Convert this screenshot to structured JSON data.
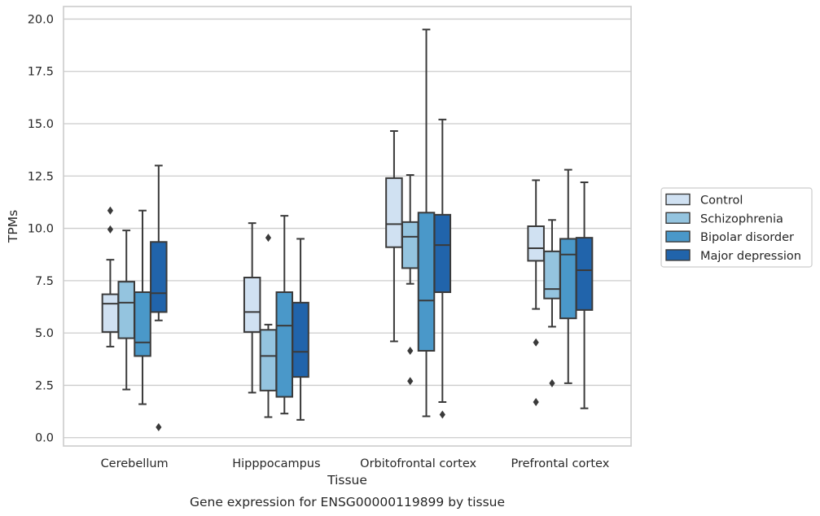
{
  "chart_data": {
    "type": "box",
    "title": "Gene expression for ENSG00000119899 by tissue",
    "xlabel": "Tissue",
    "ylabel": "TPMs",
    "ylim": [
      -0.4,
      20.6
    ],
    "yticks": [
      "0.0",
      "2.5",
      "5.0",
      "7.5",
      "10.0",
      "12.5",
      "15.0",
      "17.5",
      "20.0"
    ],
    "grid": true,
    "legend_position": "right",
    "categories": [
      "Cerebellum",
      "Hipppocampus",
      "Orbitofrontal cortex",
      "Prefrontal cortex"
    ],
    "series": [
      {
        "name": "Control",
        "color": "#d0e1f2",
        "boxes": [
          {
            "whisker_low": 4.35,
            "q1": 5.05,
            "median": 6.4,
            "q3": 6.85,
            "whisker_high": 8.5,
            "outliers": [
              9.95,
              10.85
            ]
          },
          {
            "whisker_low": 2.15,
            "q1": 5.05,
            "median": 6.0,
            "q3": 7.65,
            "whisker_high": 10.25,
            "outliers": []
          },
          {
            "whisker_low": 4.6,
            "q1": 9.1,
            "median": 10.2,
            "q3": 12.4,
            "whisker_high": 14.65,
            "outliers": []
          },
          {
            "whisker_low": 6.15,
            "q1": 8.45,
            "median": 9.05,
            "q3": 10.1,
            "whisker_high": 12.3,
            "outliers": [
              1.7,
              4.55
            ]
          }
        ]
      },
      {
        "name": "Schizophrenia",
        "color": "#94c4df",
        "boxes": [
          {
            "whisker_low": 2.3,
            "q1": 4.75,
            "median": 6.45,
            "q3": 7.45,
            "whisker_high": 9.9,
            "outliers": []
          },
          {
            "whisker_low": 0.98,
            "q1": 2.25,
            "median": 3.9,
            "q3": 5.15,
            "whisker_high": 5.4,
            "outliers": [
              9.55
            ]
          },
          {
            "whisker_low": 7.35,
            "q1": 8.1,
            "median": 9.6,
            "q3": 10.3,
            "whisker_high": 12.55,
            "outliers": [
              2.7,
              4.15
            ]
          },
          {
            "whisker_low": 5.3,
            "q1": 6.65,
            "median": 7.1,
            "q3": 8.9,
            "whisker_high": 10.4,
            "outliers": [
              2.6
            ]
          }
        ]
      },
      {
        "name": "Bipolar disorder",
        "color": "#4a98c9",
        "boxes": [
          {
            "whisker_low": 1.6,
            "q1": 3.9,
            "median": 4.55,
            "q3": 6.95,
            "whisker_high": 10.85,
            "outliers": []
          },
          {
            "whisker_low": 1.15,
            "q1": 1.95,
            "median": 5.35,
            "q3": 6.95,
            "whisker_high": 10.6,
            "outliers": []
          },
          {
            "whisker_low": 1.02,
            "q1": 4.15,
            "median": 6.55,
            "q3": 10.75,
            "whisker_high": 19.5,
            "outliers": []
          },
          {
            "whisker_low": 2.6,
            "q1": 5.7,
            "median": 8.75,
            "q3": 9.5,
            "whisker_high": 12.8,
            "outliers": []
          }
        ]
      },
      {
        "name": "Major depression",
        "color": "#2164ab",
        "boxes": [
          {
            "whisker_low": 5.6,
            "q1": 6.0,
            "median": 6.9,
            "q3": 9.35,
            "whisker_high": 13.0,
            "outliers": [
              0.5
            ]
          },
          {
            "whisker_low": 0.85,
            "q1": 2.9,
            "median": 4.1,
            "q3": 6.45,
            "whisker_high": 9.5,
            "outliers": []
          },
          {
            "whisker_low": 1.7,
            "q1": 6.95,
            "median": 9.2,
            "q3": 10.65,
            "whisker_high": 15.2,
            "outliers": [
              1.1
            ]
          },
          {
            "whisker_low": 1.4,
            "q1": 6.1,
            "median": 8.0,
            "q3": 9.55,
            "whisker_high": 12.2,
            "outliers": []
          }
        ]
      }
    ]
  }
}
